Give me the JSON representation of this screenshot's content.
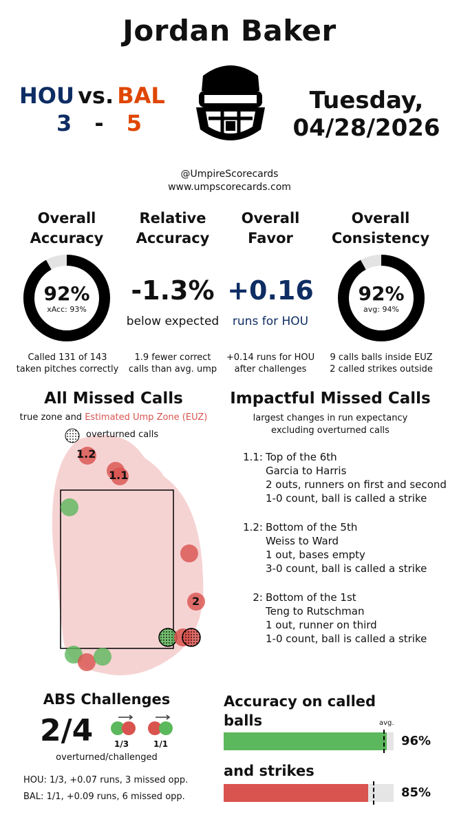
{
  "umpire_name": "Jordan Baker",
  "game": {
    "away_team": "HOU",
    "vs": "vs.",
    "home_team": "BAL",
    "away_score": "3",
    "dash": "-",
    "home_score": "5",
    "date_line1": "Tuesday,",
    "date_line2": "04/28/2026",
    "colors": {
      "hou": "#0e2d63",
      "bal": "#df4601"
    }
  },
  "branding": {
    "handle": "@UmpireScorecards",
    "website": "www.umpscorecards.com",
    "logo_icon": "umpire-mask-icon"
  },
  "stats": {
    "accuracy": {
      "title1": "Overall",
      "title2": "Accuracy",
      "value": "92%",
      "sub": "xAcc: 93%",
      "fill": 0.92,
      "caption1": "Called 131 of 143",
      "caption2": "taken pitches correctly"
    },
    "relative": {
      "title1": "Relative",
      "title2": "Accuracy",
      "value": "-1.3%",
      "sub": "below expected",
      "caption1": "1.9 fewer correct",
      "caption2": "calls than avg. ump"
    },
    "favor": {
      "title1": "Overall",
      "title2": "Favor",
      "value": "+0.16",
      "sub": "runs for HOU",
      "caption1": "+0.14 runs for HOU",
      "caption2": "after challenges"
    },
    "consistency": {
      "title1": "Overall",
      "title2": "Consistency",
      "value": "92%",
      "sub": "avg: 94%",
      "fill": 0.92,
      "caption1": "9 calls balls inside EUZ",
      "caption2": "2 called strikes outside"
    }
  },
  "missed_calls": {
    "title": "All Missed Calls",
    "subtitle_plain": "true zone and ",
    "subtitle_red": "Estimated Ump Zone (EUZ)",
    "legend_label": "overturned calls",
    "point_labels": [
      "1.2",
      "1.1",
      "2"
    ]
  },
  "impactful": {
    "title": "Impactful Missed Calls",
    "subtitle1": "largest changes in run expectancy",
    "subtitle2": "excluding overturned calls",
    "items": [
      {
        "id": "1.1:",
        "line1": "Top of the 6th",
        "line2": "Garcia to Harris",
        "line3": "2 outs, runners on first and second",
        "line4": "1-0 count, ball is called a strike"
      },
      {
        "id": "1.2:",
        "line1": "Bottom of the 5th",
        "line2": "Weiss to Ward",
        "line3": "1 out, bases empty",
        "line4": "3-0 count, ball is called a strike"
      },
      {
        "id": "2:",
        "line1": "Bottom of the 1st",
        "line2": "Teng to Rutschman",
        "line3": "1 out, runner on third",
        "line4": "1-0 count, ball is called a strike"
      }
    ]
  },
  "abs": {
    "title": "ABS Challenges",
    "ratio": "2/4",
    "hou_ratio": "1/3",
    "bal_ratio": "1/1",
    "caption": "overturned/challenged",
    "hou_line": "HOU: 1/3, +0.07 runs, 3 missed opp.",
    "bal_line": "BAL: 1/1, +0.09 runs, 6 missed opp."
  },
  "called_accuracy": {
    "title_balls1": "Accuracy on called",
    "title_balls2": "balls",
    "avg_label": "avg.",
    "balls_value": "96%",
    "balls_fill": 0.96,
    "balls_avg": 0.94,
    "title_strikes": "and strikes",
    "strikes_value": "85%",
    "strikes_fill": 0.85,
    "strikes_avg": 0.88,
    "colors": {
      "balls": "#5cb85c",
      "strikes": "#d9534f"
    }
  }
}
